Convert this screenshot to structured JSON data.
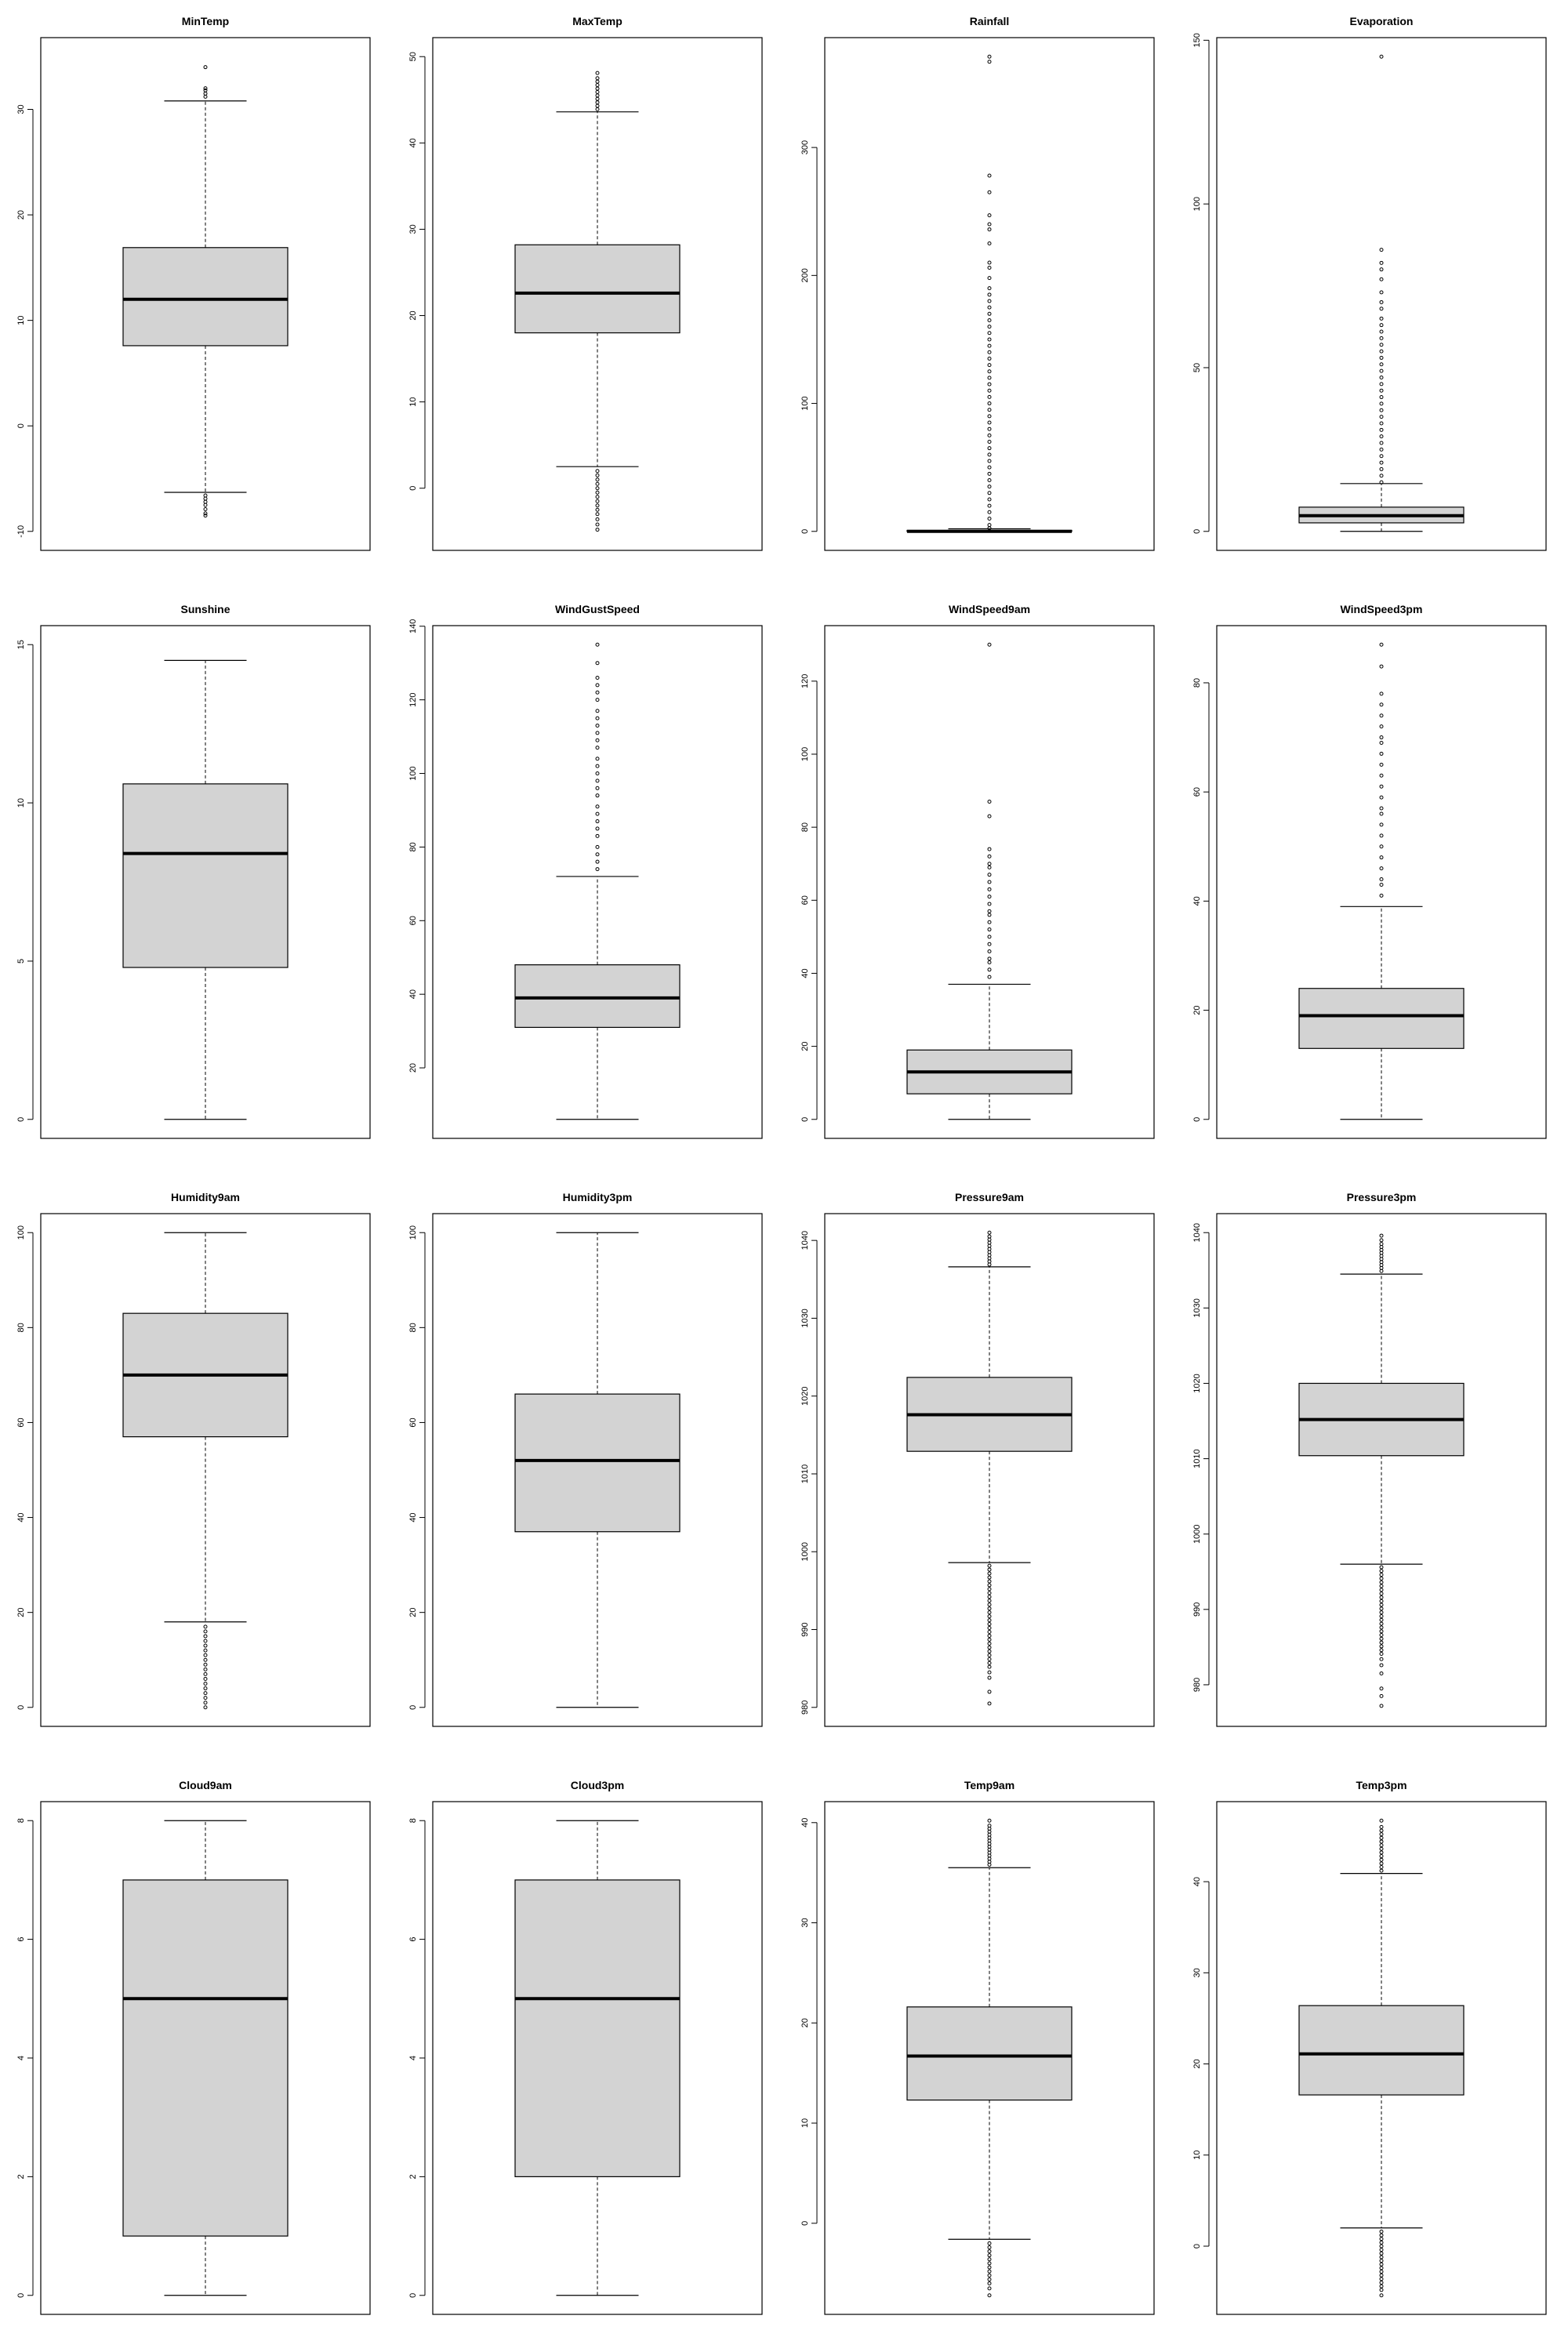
{
  "chart_data": [
    {
      "type": "box",
      "title": "MinTemp",
      "ylim": [
        -10,
        35
      ],
      "ticks": [
        -10,
        0,
        10,
        20,
        30
      ],
      "stats": {
        "lower_whisker": -6.3,
        "q1": 7.6,
        "median": 12.0,
        "q3": 16.9,
        "upper_whisker": 30.8
      },
      "outliers_high": [
        31.2,
        31.5,
        31.8,
        32.0,
        34.0
      ],
      "outliers_low": [
        -6.6,
        -6.9,
        -7.2,
        -7.5,
        -7.9,
        -8.3,
        -8.5
      ]
    },
    {
      "type": "box",
      "title": "MaxTemp",
      "ylim": [
        -5,
        50
      ],
      "ticks": [
        0,
        10,
        20,
        30,
        40,
        50
      ],
      "stats": {
        "lower_whisker": 2.5,
        "q1": 18.0,
        "median": 22.6,
        "q3": 28.2,
        "upper_whisker": 43.6
      },
      "outliers_high": [
        43.9,
        44.3,
        44.7,
        45.1,
        45.5,
        45.9,
        46.3,
        46.7,
        47.1,
        47.5,
        48.1
      ],
      "outliers_low": [
        2.0,
        1.5,
        1.0,
        0.5,
        0.0,
        -0.5,
        -1.0,
        -1.5,
        -2.0,
        -2.5,
        -3.0,
        -3.6,
        -4.2,
        -4.8
      ]
    },
    {
      "type": "box",
      "title": "Rainfall",
      "ylim": [
        0,
        371
      ],
      "ticks": [
        0,
        100,
        200,
        300
      ],
      "stats": {
        "lower_whisker": 0.0,
        "q1": 0.0,
        "median": 0.0,
        "q3": 0.8,
        "upper_whisker": 2.0
      },
      "outliers_high": [
        2.5,
        5,
        10,
        15,
        20,
        25,
        30,
        35,
        40,
        45,
        50,
        55,
        60,
        65,
        70,
        75,
        80,
        85,
        90,
        95,
        100,
        105,
        110,
        115,
        120,
        125,
        130,
        135,
        140,
        145,
        150,
        155,
        160,
        165,
        170,
        175,
        180,
        185,
        190,
        198,
        206,
        210,
        225,
        236,
        240,
        247,
        265,
        278,
        367,
        371
      ],
      "outliers_low": []
    },
    {
      "type": "box",
      "title": "Evaporation",
      "ylim": [
        0,
        145
      ],
      "ticks": [
        0,
        50,
        100,
        150
      ],
      "stats": {
        "lower_whisker": 0.0,
        "q1": 2.6,
        "median": 4.8,
        "q3": 7.4,
        "upper_whisker": 14.6
      },
      "outliers_high": [
        15,
        17,
        19,
        21,
        23,
        25,
        27,
        29,
        31,
        33,
        35,
        37,
        39,
        41,
        43,
        45,
        47,
        49,
        51,
        53,
        55,
        57,
        59,
        61,
        63,
        65,
        68,
        70,
        73,
        77,
        80,
        82,
        86,
        145
      ],
      "outliers_low": []
    },
    {
      "type": "box",
      "title": "Sunshine",
      "ylim": [
        0,
        15
      ],
      "ticks": [
        0,
        5,
        10,
        15
      ],
      "stats": {
        "lower_whisker": 0.0,
        "q1": 4.8,
        "median": 8.4,
        "q3": 10.6,
        "upper_whisker": 14.5
      },
      "outliers_high": [],
      "outliers_low": []
    },
    {
      "type": "box",
      "title": "WindGustSpeed",
      "ylim": [
        6,
        135
      ],
      "ticks": [
        20,
        40,
        60,
        80,
        100,
        120,
        140
      ],
      "stats": {
        "lower_whisker": 6.0,
        "q1": 31.0,
        "median": 39.0,
        "q3": 48.0,
        "upper_whisker": 72.0
      },
      "outliers_high": [
        74,
        76,
        78,
        80,
        83,
        85,
        87,
        89,
        91,
        94,
        96,
        98,
        100,
        102,
        104,
        107,
        109,
        111,
        113,
        115,
        117,
        120,
        122,
        124,
        126,
        130,
        135
      ],
      "outliers_low": []
    },
    {
      "type": "box",
      "title": "WindSpeed9am",
      "ylim": [
        0,
        130
      ],
      "ticks": [
        0,
        20,
        40,
        60,
        80,
        100,
        120
      ],
      "stats": {
        "lower_whisker": 0.0,
        "q1": 7.0,
        "median": 13.0,
        "q3": 19.0,
        "upper_whisker": 37.0
      },
      "outliers_high": [
        39,
        41,
        43,
        44,
        46,
        48,
        50,
        52,
        54,
        56,
        57,
        59,
        61,
        63,
        65,
        67,
        69,
        70,
        72,
        74,
        83,
        87,
        130
      ],
      "outliers_low": []
    },
    {
      "type": "box",
      "title": "WindSpeed3pm",
      "ylim": [
        0,
        87
      ],
      "ticks": [
        0,
        20,
        40,
        60,
        80
      ],
      "stats": {
        "lower_whisker": 0.0,
        "q1": 13.0,
        "median": 19.0,
        "q3": 24.0,
        "upper_whisker": 39.0
      },
      "outliers_high": [
        41,
        43,
        44,
        46,
        48,
        50,
        52,
        54,
        56,
        57,
        59,
        61,
        63,
        65,
        67,
        69,
        70,
        72,
        74,
        76,
        78,
        83,
        87
      ],
      "outliers_low": []
    },
    {
      "type": "box",
      "title": "Humidity9am",
      "ylim": [
        0,
        100
      ],
      "ticks": [
        0,
        20,
        40,
        60,
        80,
        100
      ],
      "stats": {
        "lower_whisker": 18.0,
        "q1": 57.0,
        "median": 70.0,
        "q3": 83.0,
        "upper_whisker": 100.0
      },
      "outliers_high": [],
      "outliers_low": [
        17,
        16,
        15,
        14,
        13,
        12,
        11,
        10,
        9,
        8,
        7,
        6,
        5,
        4,
        3,
        2,
        1,
        0
      ]
    },
    {
      "type": "box",
      "title": "Humidity3pm",
      "ylim": [
        0,
        100
      ],
      "ticks": [
        0,
        20,
        40,
        60,
        80,
        100
      ],
      "stats": {
        "lower_whisker": 0.0,
        "q1": 37.0,
        "median": 52.0,
        "q3": 66.0,
        "upper_whisker": 100.0
      },
      "outliers_high": [],
      "outliers_low": []
    },
    {
      "type": "box",
      "title": "Pressure9am",
      "ylim": [
        980,
        1041
      ],
      "ticks": [
        980,
        990,
        1000,
        1010,
        1020,
        1030,
        1040
      ],
      "stats": {
        "lower_whisker": 998.6,
        "q1": 1012.9,
        "median": 1017.6,
        "q3": 1022.4,
        "upper_whisker": 1036.6
      },
      "outliers_high": [
        1036.9,
        1037.3,
        1037.7,
        1038.1,
        1038.5,
        1038.9,
        1039.3,
        1039.7,
        1040.1,
        1040.5,
        1041.0
      ],
      "outliers_low": [
        998.2,
        997.7,
        997.2,
        996.7,
        996.2,
        995.7,
        995.2,
        994.7,
        994.2,
        993.7,
        993.2,
        992.7,
        992.2,
        991.7,
        991.2,
        990.7,
        990.2,
        989.7,
        989.2,
        988.7,
        988.2,
        987.7,
        987.2,
        986.7,
        986.2,
        985.7,
        985.2,
        984.5,
        983.8,
        982.0,
        980.5
      ]
    },
    {
      "type": "box",
      "title": "Pressure3pm",
      "ylim": [
        977,
        1040
      ],
      "ticks": [
        980,
        990,
        1000,
        1010,
        1020,
        1030,
        1040
      ],
      "stats": {
        "lower_whisker": 996.0,
        "q1": 1010.4,
        "median": 1015.2,
        "q3": 1020.0,
        "upper_whisker": 1034.5
      },
      "outliers_high": [
        1034.9,
        1035.3,
        1035.7,
        1036.1,
        1036.5,
        1036.9,
        1037.3,
        1037.7,
        1038.1,
        1038.5,
        1039.0,
        1039.6
      ],
      "outliers_low": [
        995.6,
        995.1,
        994.6,
        994.1,
        993.6,
        993.1,
        992.6,
        992.1,
        991.6,
        991.1,
        990.6,
        990.1,
        989.6,
        989.1,
        988.6,
        988.1,
        987.6,
        987.1,
        986.6,
        986.1,
        985.6,
        985.1,
        984.6,
        984.1,
        983.4,
        982.6,
        981.5,
        979.5,
        978.5,
        977.2
      ]
    },
    {
      "type": "box",
      "title": "Cloud9am",
      "ylim": [
        0,
        8
      ],
      "ticks": [
        0,
        2,
        4,
        6,
        8
      ],
      "stats": {
        "lower_whisker": 0.0,
        "q1": 1.0,
        "median": 5.0,
        "q3": 7.0,
        "upper_whisker": 8.0
      },
      "outliers_high": [],
      "outliers_low": []
    },
    {
      "type": "box",
      "title": "Cloud3pm",
      "ylim": [
        0,
        8
      ],
      "ticks": [
        0,
        2,
        4,
        6,
        8
      ],
      "stats": {
        "lower_whisker": 0.0,
        "q1": 2.0,
        "median": 5.0,
        "q3": 7.0,
        "upper_whisker": 8.0
      },
      "outliers_high": [],
      "outliers_low": []
    },
    {
      "type": "box",
      "title": "Temp9am",
      "ylim": [
        -7.2,
        40.2
      ],
      "ticks": [
        0,
        10,
        20,
        30,
        40
      ],
      "stats": {
        "lower_whisker": -1.6,
        "q1": 12.3,
        "median": 16.7,
        "q3": 21.6,
        "upper_whisker": 35.5
      },
      "outliers_high": [
        35.8,
        36.1,
        36.4,
        36.7,
        37.0,
        37.3,
        37.6,
        37.9,
        38.2,
        38.5,
        38.8,
        39.1,
        39.4,
        39.7,
        40.2
      ],
      "outliers_low": [
        -2.0,
        -2.4,
        -2.8,
        -3.2,
        -3.6,
        -4.0,
        -4.4,
        -4.8,
        -5.2,
        -5.6,
        -6.0,
        -6.5,
        -7.2
      ]
    },
    {
      "type": "box",
      "title": "Temp3pm",
      "ylim": [
        -5.4,
        46.7
      ],
      "ticks": [
        0,
        10,
        20,
        30,
        40
      ],
      "stats": {
        "lower_whisker": 2.0,
        "q1": 16.6,
        "median": 21.1,
        "q3": 26.4,
        "upper_whisker": 40.9
      },
      "outliers_high": [
        41.2,
        41.6,
        42.0,
        42.4,
        42.8,
        43.2,
        43.6,
        44.0,
        44.4,
        44.8,
        45.2,
        45.6,
        46.0,
        46.7
      ],
      "outliers_low": [
        1.6,
        1.2,
        0.8,
        0.4,
        0.0,
        -0.4,
        -0.8,
        -1.2,
        -1.6,
        -2.0,
        -2.4,
        -2.8,
        -3.2,
        -3.6,
        -4.0,
        -4.4,
        -4.8,
        -5.4
      ]
    }
  ]
}
